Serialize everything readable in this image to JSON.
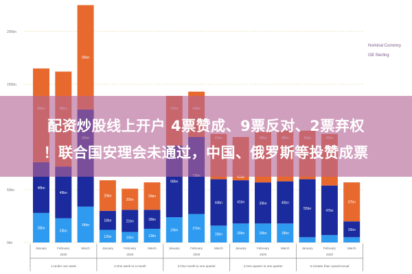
{
  "headline": {
    "line1": "配资炒股线上开户 4票赞成、9票反对、2票弃权",
    "line2": "！联合国安理会未通过，中国、俄罗斯等投赞成票"
  },
  "chart_data": {
    "type": "bar",
    "stacked": true,
    "ylim": [
      0,
      230
    ],
    "yticks": [
      0,
      50,
      150,
      200
    ],
    "ytick_labels": [
      "0bn",
      "50bn",
      "150bn",
      "200bn"
    ],
    "grid": true,
    "legend": {
      "placement": "right",
      "title": "Nominal Currency",
      "entries": [
        "GB Sterling"
      ]
    },
    "categories": [
      "January",
      "February",
      "March",
      "January",
      "February",
      "March",
      "January",
      "February",
      "March",
      "January",
      "February",
      "March",
      "January",
      "February",
      "March"
    ],
    "year_label": "2020",
    "groups": [
      "1.Under one week",
      "2.One week to a month",
      "3.One month to one quarter",
      "4.One quarter to one quarter",
      "5.Greater than 1year/Annual"
    ],
    "series": [
      {
        "values": [
          28,
          23,
          34,
          12,
          10,
          13,
          24,
          27,
          16,
          18,
          18,
          18,
          5,
          7,
          5
        ],
        "color": "#2e9bf0"
      },
      {
        "values": [
          48,
          49,
          92,
          18,
          21,
          18,
          68,
          73,
          44,
          41,
          39,
          40,
          55,
          47,
          15
        ],
        "color": "#1b2a9c"
      },
      {
        "values": [
          89,
          90,
          99,
          29,
          20,
          26,
          47,
          43,
          43,
          41,
          48,
          48,
          46,
          49,
          37
        ],
        "color": "#e8692e"
      }
    ]
  }
}
